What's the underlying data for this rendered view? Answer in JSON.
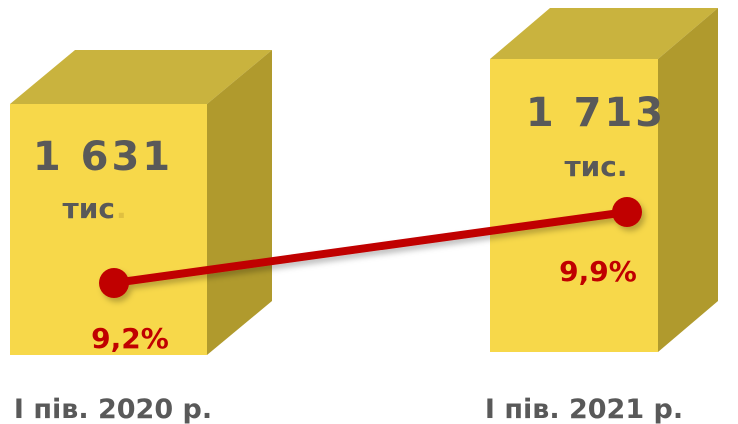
{
  "chart_data": {
    "type": "bar",
    "categories": [
      "І пів. 2020 р.",
      "І пів. 2021 р."
    ],
    "series": [
      {
        "values": [
          1631,
          1713
        ],
        "value_labels": [
          "1 631",
          "1 713"
        ],
        "unit_labels": [
          "тис",
          "тис."
        ],
        "unit_dot": "."
      },
      {
        "type": "line",
        "values": [
          9.2,
          9.9
        ],
        "value_labels": [
          "9,2%",
          "9,9%"
        ]
      }
    ],
    "colors": {
      "bar_front": "#f7d84a",
      "bar_side": "#b09a2d",
      "bar_top": "#c9b33e",
      "value_text": "#595959",
      "line": "#c00000",
      "percent_text": "#c00000",
      "unit_dot": "#e0c040",
      "category_text": "#595959"
    }
  }
}
